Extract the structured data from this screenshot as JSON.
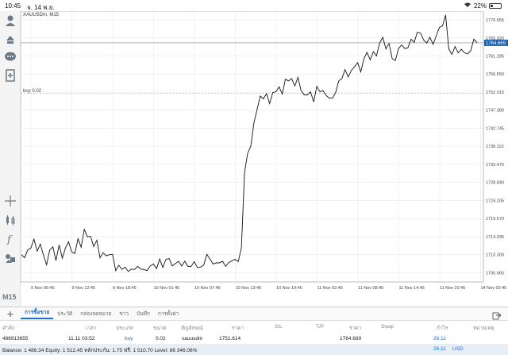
{
  "statusbar": {
    "time": "10:45",
    "date": "จ. 14 พ.ย.",
    "battery": "22%"
  },
  "chart": {
    "title": "XAUUSDm, M15",
    "order_label": "buy 0.02",
    "current_price": "1764.669",
    "colors": {
      "line": "#111111",
      "grid": "#e6e6e6",
      "price_tag": "#1f5fa8",
      "order_line": "#b8b8b8"
    }
  },
  "toolbar": {
    "icons": [
      "account-icon",
      "order-icon",
      "chat-icon",
      "add-indicator-icon",
      "crosshair-icon",
      "chart-type-icon",
      "function-icon",
      "objects-icon"
    ],
    "timeframe": "M15"
  },
  "chart_data": {
    "type": "line",
    "title": "XAUUSDm, M15",
    "xlabel": "",
    "ylabel": "",
    "ylim": [
      1703.3,
      1772.8
    ],
    "grid": true,
    "x_ticks": [
      "9 Nov 06:45",
      "9 Nov 12:45",
      "9 Nov 18:45",
      "10 Nov 01:45",
      "10 Nov 07:45",
      "10 Nov 13:45",
      "10 Nov 19:45",
      "11 Nov 02:45",
      "11 Nov 08:45",
      "11 Nov 14:45",
      "11 Nov 20:45",
      "14 Nov 03:45"
    ],
    "y_ticks": [
      "1770.555",
      "1765.920",
      "1761.285",
      "1756.650",
      "1752.015",
      "1747.380",
      "1742.745",
      "1738.110",
      "1733.475",
      "1728.840",
      "1724.205",
      "1719.570",
      "1714.935",
      "1710.300",
      "1705.665"
    ],
    "series": [
      {
        "values": [
          1710.3,
          1709.5,
          1711.5,
          1712.0,
          1714.3,
          1711.2,
          1713.0,
          1710.2,
          1707.7,
          1711.5,
          1712.3,
          1708.8,
          1712.8,
          1709.4,
          1712.0,
          1713.6,
          1711.0,
          1710.6,
          1714.4,
          1712.2,
          1716.8,
          1714.9,
          1715.0,
          1712.4,
          1714.0,
          1709.5,
          1710.8,
          1710.0,
          1710.3,
          1710.4,
          1706.2,
          1707.6,
          1706.5,
          1707.1,
          1706.0,
          1706.6,
          1706.5,
          1707.3,
          1706.6,
          1706.5,
          1706.2,
          1707.4,
          1707.9,
          1706.7,
          1709.2,
          1707.0,
          1709.1,
          1709.3,
          1707.4,
          1708.0,
          1708.6,
          1707.4,
          1708.6,
          1707.3,
          1707.3,
          1708.5,
          1707.0,
          1707.1,
          1707.6,
          1710.4,
          1709.2,
          1707.9,
          1708.2,
          1708.2,
          1708.6,
          1707.3,
          1708.3,
          1708.7,
          1709.1,
          1708.5,
          1712.0,
          1731.4,
          1736.3,
          1738.2,
          1744.1,
          1747.6,
          1751.0,
          1750.3,
          1751.6,
          1749.1,
          1751.9,
          1752.1,
          1753.4,
          1751.5,
          1755.3,
          1754.9,
          1755.5,
          1753.6,
          1755.8,
          1752.4,
          1751.3,
          1751.3,
          1752.1,
          1749.5,
          1753.5,
          1752.1,
          1752.4,
          1751.1,
          1750.5,
          1750.5,
          1751.9,
          1754.9,
          1755.5,
          1757.8,
          1755.9,
          1757.6,
          1758.5,
          1759.6,
          1757.2,
          1760.6,
          1762.2,
          1760.3,
          1762.4,
          1761.3,
          1764.6,
          1766.1,
          1763.1,
          1764.5,
          1760.6,
          1760.1,
          1763.2,
          1764.1,
          1763.2,
          1763.4,
          1765.6,
          1764.8,
          1767.4,
          1767.2,
          1765.4,
          1764.6,
          1766.1,
          1764.3,
          1766.4,
          1768.6,
          1769.0,
          1771.8,
          1763.1,
          1761.7,
          1763.7,
          1762.1,
          1763.0,
          1762.1,
          1761.8,
          1762.7,
          1765.6,
          1764.7
        ]
      }
    ]
  },
  "tabs": [
    "การซื้อขาย",
    "ประวัติ",
    "กล่องจดหมาย",
    "ข่าว",
    "บันทึก",
    "การตั้งค่า"
  ],
  "table": {
    "headers": [
      "คำสั่ง",
      "เวลา",
      "ประเภท",
      "ขนาด",
      "สัญลักษณ์",
      "ราคา",
      "S/L",
      "T/P",
      "ราคา",
      "Swap",
      "กำไร",
      "หมายเหตุ"
    ],
    "row": {
      "order": "486913655",
      "time": "11.11 03:52",
      "type": "buy",
      "size": "0.02",
      "symbol": "xauusdm",
      "open_price": "1751.614",
      "current_price": "1764.669",
      "profit": "26.11"
    }
  },
  "balance": {
    "text": "Balance: 1 486.34 Equity: 1 512.45 หลักประกัน: 1.75 ฟรี: 1 510.70 Level: 86 346.08%",
    "profit": "26.11",
    "currency": "USD"
  }
}
